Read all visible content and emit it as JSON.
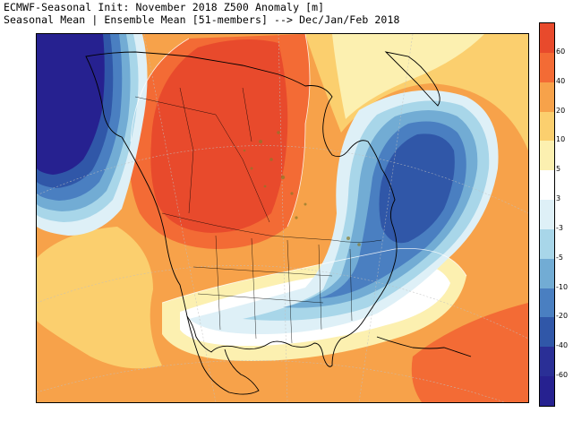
{
  "header": {
    "line1": "ECMWF-Seasonal Init: November 2018 Z500 Anomaly [m]",
    "line2": "Seasonal Mean | Ensemble Mean [51-members] --> Dec/Jan/Feb 2018"
  },
  "legend": {
    "colors": [
      "#e84a2c",
      "#f36b35",
      "#f7a24a",
      "#fbcf6e",
      "#fcf0b0",
      "#ffffff",
      "#def0f7",
      "#a8d6e9",
      "#72acd4",
      "#4a7fc1",
      "#3057a8",
      "#2a2f96",
      "#262190"
    ],
    "labels": [
      "60",
      "40",
      "20",
      "10",
      "5",
      "3",
      "-3",
      "-5",
      "-10",
      "-20",
      "-40",
      "-60"
    ]
  }
}
